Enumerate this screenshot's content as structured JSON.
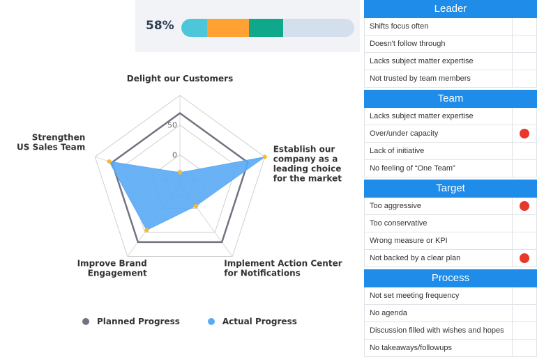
{
  "progress": {
    "percent_label": "58%",
    "segments": [
      {
        "fraction": 0.15,
        "color": "#4ec6d9"
      },
      {
        "fraction": 0.24,
        "color": "#ffa233"
      },
      {
        "fraction": 0.2,
        "color": "#0fa88a"
      }
    ],
    "track_color": "#d4dfee"
  },
  "chart_data": {
    "type": "radar",
    "axes": [
      "Delight our Customers",
      "Establish our company as a leading choice for the market",
      "Implement Action Center for Notifications",
      "Improve Brand Engagement",
      "Strengthen US Sales Team"
    ],
    "axis_label_lines": [
      [
        "Delight our Customers"
      ],
      [
        "Establish our",
        "company as a",
        "leading choice",
        "for the market"
      ],
      [
        "Implement Action Center",
        "for Notifications"
      ],
      [
        "Improve Brand",
        "Engagement"
      ],
      [
        "Strengthen",
        "US Sales Team"
      ]
    ],
    "range": [
      -50,
      100
    ],
    "ticks": [
      0,
      50
    ],
    "tick_labels": [
      "0",
      "50"
    ],
    "series": [
      {
        "name": "Planned Progress",
        "color": "#6f7480",
        "values": [
          70,
          70,
          70,
          70,
          70
        ]
      },
      {
        "name": "Actual Progress",
        "color": "#5aaaf5",
        "values": [
          -30,
          100,
          -5,
          45,
          75
        ]
      }
    ],
    "point_color": "#f7b731",
    "legend_position": "bottom"
  },
  "issues": [
    {
      "title": "Leader",
      "rows": [
        {
          "label": "Shifts focus often",
          "flag": false
        },
        {
          "label": "Doesn't follow through",
          "flag": false
        },
        {
          "label": "Lacks subject matter expertise",
          "flag": false
        },
        {
          "label": "Not trusted by team members",
          "flag": false
        }
      ]
    },
    {
      "title": "Team",
      "rows": [
        {
          "label": "Lacks subject matter expertise",
          "flag": false
        },
        {
          "label": "Over/under capacity",
          "flag": true
        },
        {
          "label": "Lack of initiative",
          "flag": false
        },
        {
          "label": "No feeling of “One Team”",
          "flag": false
        }
      ]
    },
    {
      "title": "Target",
      "rows": [
        {
          "label": "Too aggressive",
          "flag": true
        },
        {
          "label": "Too conservative",
          "flag": false
        },
        {
          "label": "Wrong measure or KPI",
          "flag": false
        },
        {
          "label": "Not backed by a clear plan",
          "flag": true
        }
      ]
    },
    {
      "title": "Process",
      "rows": [
        {
          "label": "Not set meeting frequency",
          "flag": false
        },
        {
          "label": "No agenda",
          "flag": false
        },
        {
          "label": "Discussion filled with wishes and hopes",
          "flag": false
        },
        {
          "label": "No takeaways/followups",
          "flag": false
        }
      ]
    }
  ],
  "colors": {
    "header": "#1e8ce8",
    "flag": "#e8372b"
  }
}
